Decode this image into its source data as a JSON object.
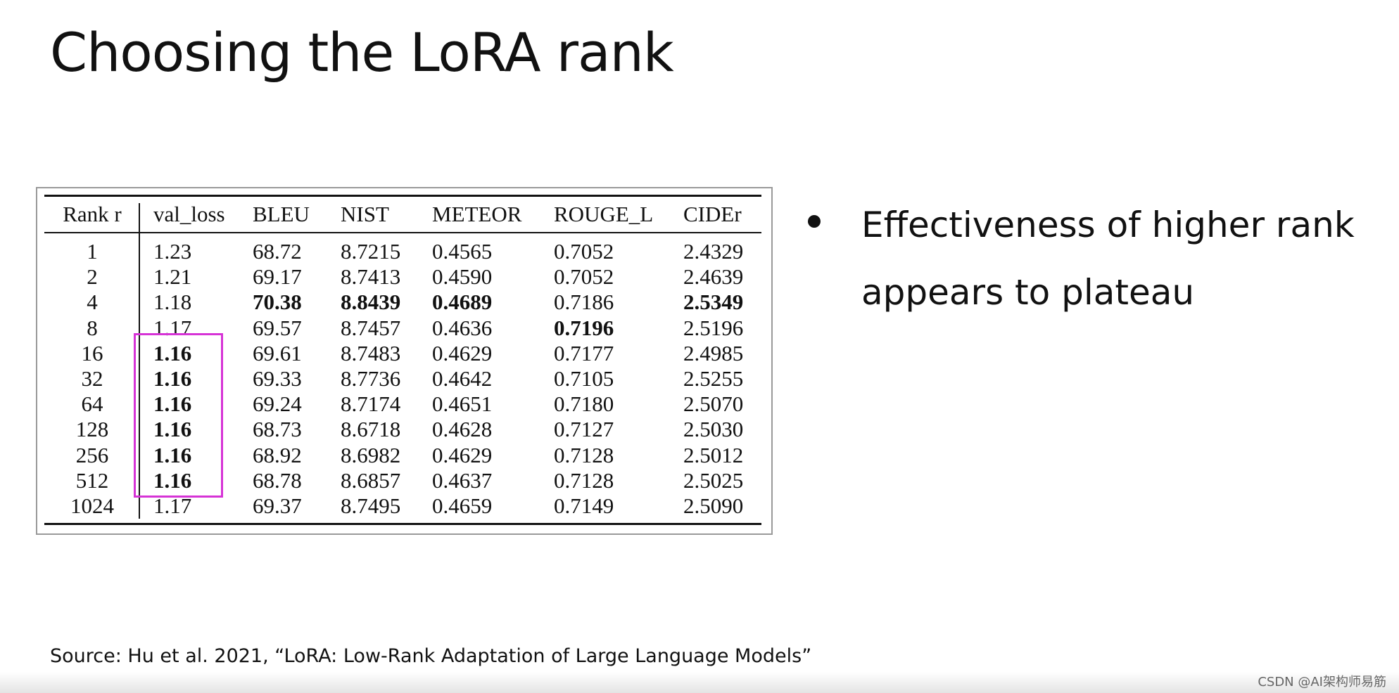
{
  "header": {
    "title": "Choosing the LoRA rank"
  },
  "table": {
    "columns": [
      "Rank r",
      "val_loss",
      "BLEU",
      "NIST",
      "METEOR",
      "ROUGE_L",
      "CIDEr"
    ],
    "rows": [
      [
        "1",
        "1.23",
        "68.72",
        "8.7215",
        "0.4565",
        "0.7052",
        "2.4329"
      ],
      [
        "2",
        "1.21",
        "69.17",
        "8.7413",
        "0.4590",
        "0.7052",
        "2.4639"
      ],
      [
        "4",
        "1.18",
        {
          "text": "70.38",
          "bold": true
        },
        {
          "text": "8.8439",
          "bold": true
        },
        {
          "text": "0.4689",
          "bold": true
        },
        "0.7186",
        {
          "text": "2.5349",
          "bold": true
        }
      ],
      [
        "8",
        "1.17",
        "69.57",
        "8.7457",
        "0.4636",
        {
          "text": "0.7196",
          "bold": true
        },
        "2.5196"
      ],
      [
        "16",
        {
          "text": "1.16",
          "bold": true
        },
        "69.61",
        "8.7483",
        "0.4629",
        "0.7177",
        "2.4985"
      ],
      [
        "32",
        {
          "text": "1.16",
          "bold": true
        },
        "69.33",
        "8.7736",
        "0.4642",
        "0.7105",
        "2.5255"
      ],
      [
        "64",
        {
          "text": "1.16",
          "bold": true
        },
        "69.24",
        "8.7174",
        "0.4651",
        "0.7180",
        "2.5070"
      ],
      [
        "128",
        {
          "text": "1.16",
          "bold": true
        },
        "68.73",
        "8.6718",
        "0.4628",
        "0.7127",
        "2.5030"
      ],
      [
        "256",
        {
          "text": "1.16",
          "bold": true
        },
        "68.92",
        "8.6982",
        "0.4629",
        "0.7128",
        "2.5012"
      ],
      [
        "512",
        {
          "text": "1.16",
          "bold": true
        },
        "68.78",
        "8.6857",
        "0.4637",
        "0.7128",
        "2.5025"
      ],
      [
        "1024",
        "1.17",
        "69.37",
        "8.7495",
        "0.4659",
        "0.7149",
        "2.5090"
      ]
    ]
  },
  "bullets": [
    "Effectiveness of higher rank appears to plateau"
  ],
  "source": "Source:  Hu et al. 2021, “LoRA: Low-Rank Adaptation of Large Language Models”",
  "watermark": "CSDN @AI架构师易筋"
}
